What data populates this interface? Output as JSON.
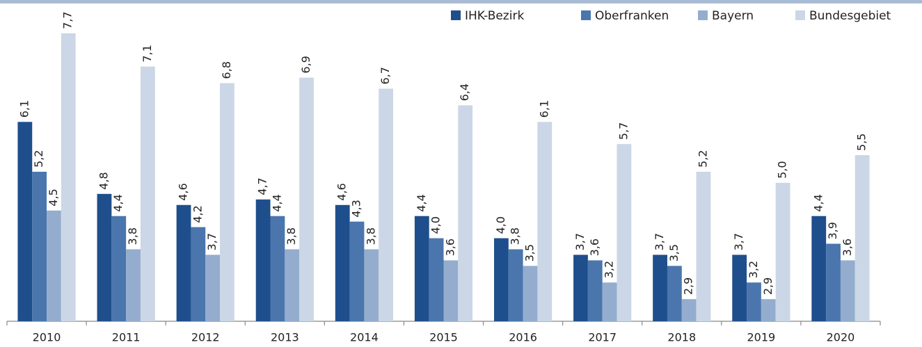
{
  "chart_data": {
    "type": "bar",
    "categories": [
      "2010",
      "2011",
      "2012",
      "2013",
      "2014",
      "2015",
      "2016",
      "2017",
      "2018",
      "2019",
      "2020"
    ],
    "series": [
      {
        "name": "IHK-Bezirk",
        "color": "#1f4e8c",
        "values": [
          6.1,
          4.8,
          4.6,
          4.7,
          4.6,
          4.4,
          4.0,
          3.7,
          3.7,
          3.7,
          4.4
        ],
        "value_labels": [
          "6,1",
          "4,8",
          "4,6",
          "4,7",
          "4,6",
          "4,4",
          "4,0",
          "3,7",
          "3,7",
          "3,7",
          "4,4"
        ]
      },
      {
        "name": "Oberfranken",
        "color": "#4a76ad",
        "values": [
          5.2,
          4.4,
          4.2,
          4.4,
          4.3,
          4.0,
          3.8,
          3.6,
          3.5,
          3.2,
          3.9
        ],
        "value_labels": [
          "5,2",
          "4,4",
          "4,2",
          "4,4",
          "4,3",
          "4,0",
          "3,8",
          "3,6",
          "3,5",
          "3,2",
          "3,9"
        ]
      },
      {
        "name": "Bayern",
        "color": "#94adce",
        "values": [
          4.5,
          3.8,
          3.7,
          3.8,
          3.8,
          3.6,
          3.5,
          3.2,
          2.9,
          2.9,
          3.6
        ],
        "value_labels": [
          "4,5",
          "3,8",
          "3,7",
          "3,8",
          "3,8",
          "3,6",
          "3,5",
          "3,2",
          "2,9",
          "2,9",
          "3,6"
        ]
      },
      {
        "name": "Bundesgebiet",
        "color": "#cbd7e6",
        "values": [
          7.7,
          7.1,
          6.8,
          6.9,
          6.7,
          6.4,
          6.1,
          5.7,
          5.2,
          5.0,
          5.5
        ],
        "value_labels": [
          "7,7",
          "7,1",
          "6,8",
          "6,9",
          "6,7",
          "6,4",
          "6,1",
          "5,7",
          "5,2",
          "5,0",
          "5,5"
        ]
      }
    ],
    "ylim": [
      2.5,
      8
    ],
    "legend": "top-right"
  }
}
